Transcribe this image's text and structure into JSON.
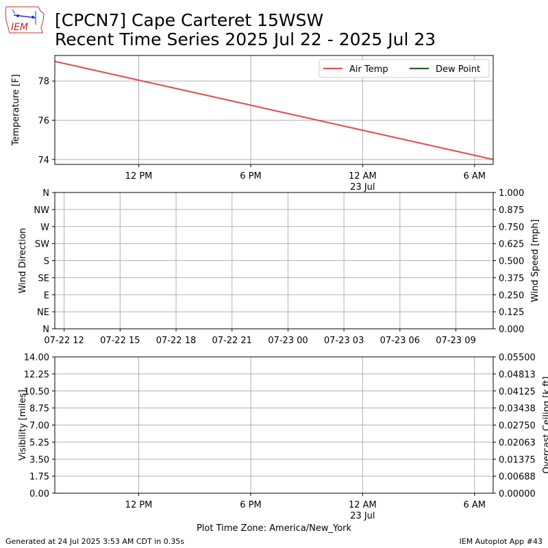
{
  "header": {
    "title_line1": "[CPCN7] Cape Carteret 15WSW",
    "title_line2": "Recent Time Series 2025 Jul 22 - 2025 Jul 23",
    "logo_text": "IEM"
  },
  "footer": {
    "generated": "Generated at 24 Jul 2025 3:53 AM CDT in 0.35s",
    "app": "IEM Autoplot App #43",
    "timezone": "Plot Time Zone: America/New_York"
  },
  "colors": {
    "air_temp": "#d9575b",
    "dew_point": "#2e5e2e",
    "ceiling_label": "#008000",
    "grid": "#b0b0b0"
  },
  "chart_data": [
    {
      "type": "line",
      "ylabel": "Temperature [F]",
      "ylim": [
        73.75,
        79.3
      ],
      "yticks": [
        74,
        76,
        78
      ],
      "x_ticks": [
        {
          "label": "12 PM",
          "sub": "",
          "t": "2025-07-22T12:00"
        },
        {
          "label": "6 PM",
          "sub": "",
          "t": "2025-07-22T18:00"
        },
        {
          "label": "12 AM",
          "sub": "23 Jul",
          "t": "2025-07-23T00:00"
        },
        {
          "label": "6 AM",
          "sub": "",
          "t": "2025-07-23T06:00"
        }
      ],
      "xlim": [
        "2025-07-22T07:30",
        "2025-07-23T07:00"
      ],
      "legend": [
        {
          "name": "Air Temp",
          "color": "#d9575b"
        },
        {
          "name": "Dew Point",
          "color": "#2e5e2e"
        }
      ],
      "legend_position": "top-right",
      "grid": true,
      "series": [
        {
          "name": "Air Temp",
          "color": "#d9575b",
          "points": [
            {
              "t": "2025-07-22T07:30",
              "y": 79.0
            },
            {
              "t": "2025-07-23T07:00",
              "y": 74.0
            }
          ]
        },
        {
          "name": "Dew Point",
          "color": "#2e5e2e",
          "points": []
        }
      ]
    },
    {
      "type": "scatter",
      "ylabel": "Wind Direction",
      "ylabel_right": "Wind Speed [mph]",
      "ylim": [
        0,
        360
      ],
      "yticks_left": [
        "N",
        "NE",
        "E",
        "SE",
        "S",
        "SW",
        "W",
        "NW",
        "N"
      ],
      "yticks_right": [
        "0.000",
        "0.125",
        "0.250",
        "0.375",
        "0.500",
        "0.625",
        "0.750",
        "0.875",
        "1.000"
      ],
      "ylim_right": [
        0,
        1
      ],
      "xlim": [
        "2025-07-22T11:30",
        "2025-07-23T11:00"
      ],
      "x_ticks": [
        {
          "label": "07-22 12",
          "t": "2025-07-22T12:00"
        },
        {
          "label": "07-22 15",
          "t": "2025-07-22T15:00"
        },
        {
          "label": "07-22 18",
          "t": "2025-07-22T18:00"
        },
        {
          "label": "07-22 21",
          "t": "2025-07-22T21:00"
        },
        {
          "label": "07-23 00",
          "t": "2025-07-23T00:00"
        },
        {
          "label": "07-23 03",
          "t": "2025-07-23T03:00"
        },
        {
          "label": "07-23 06",
          "t": "2025-07-23T06:00"
        },
        {
          "label": "07-23 09",
          "t": "2025-07-23T09:00"
        }
      ],
      "grid": true,
      "series": []
    },
    {
      "type": "line",
      "ylabel": "Visibility [miles]",
      "ylabel_right": "Overcast Ceiling [k ft]",
      "ylim": [
        0,
        14
      ],
      "yticks_left": [
        "0.00",
        "1.75",
        "3.50",
        "5.25",
        "7.00",
        "8.75",
        "10.50",
        "12.25",
        "14.00"
      ],
      "ylim_right": [
        0,
        0.055
      ],
      "yticks_right": [
        "0.00000",
        "0.00688",
        "0.01375",
        "0.02063",
        "0.02750",
        "0.03438",
        "0.04125",
        "0.04813",
        "0.05500"
      ],
      "xlim": [
        "2025-07-22T07:30",
        "2025-07-23T07:00"
      ],
      "x_ticks": [
        {
          "label": "12 PM",
          "sub": "",
          "t": "2025-07-22T12:00"
        },
        {
          "label": "6 PM",
          "sub": "",
          "t": "2025-07-22T18:00"
        },
        {
          "label": "12 AM",
          "sub": "23 Jul",
          "t": "2025-07-23T00:00"
        },
        {
          "label": "6 AM",
          "sub": "",
          "t": "2025-07-23T06:00"
        }
      ],
      "grid": true,
      "series": []
    }
  ]
}
